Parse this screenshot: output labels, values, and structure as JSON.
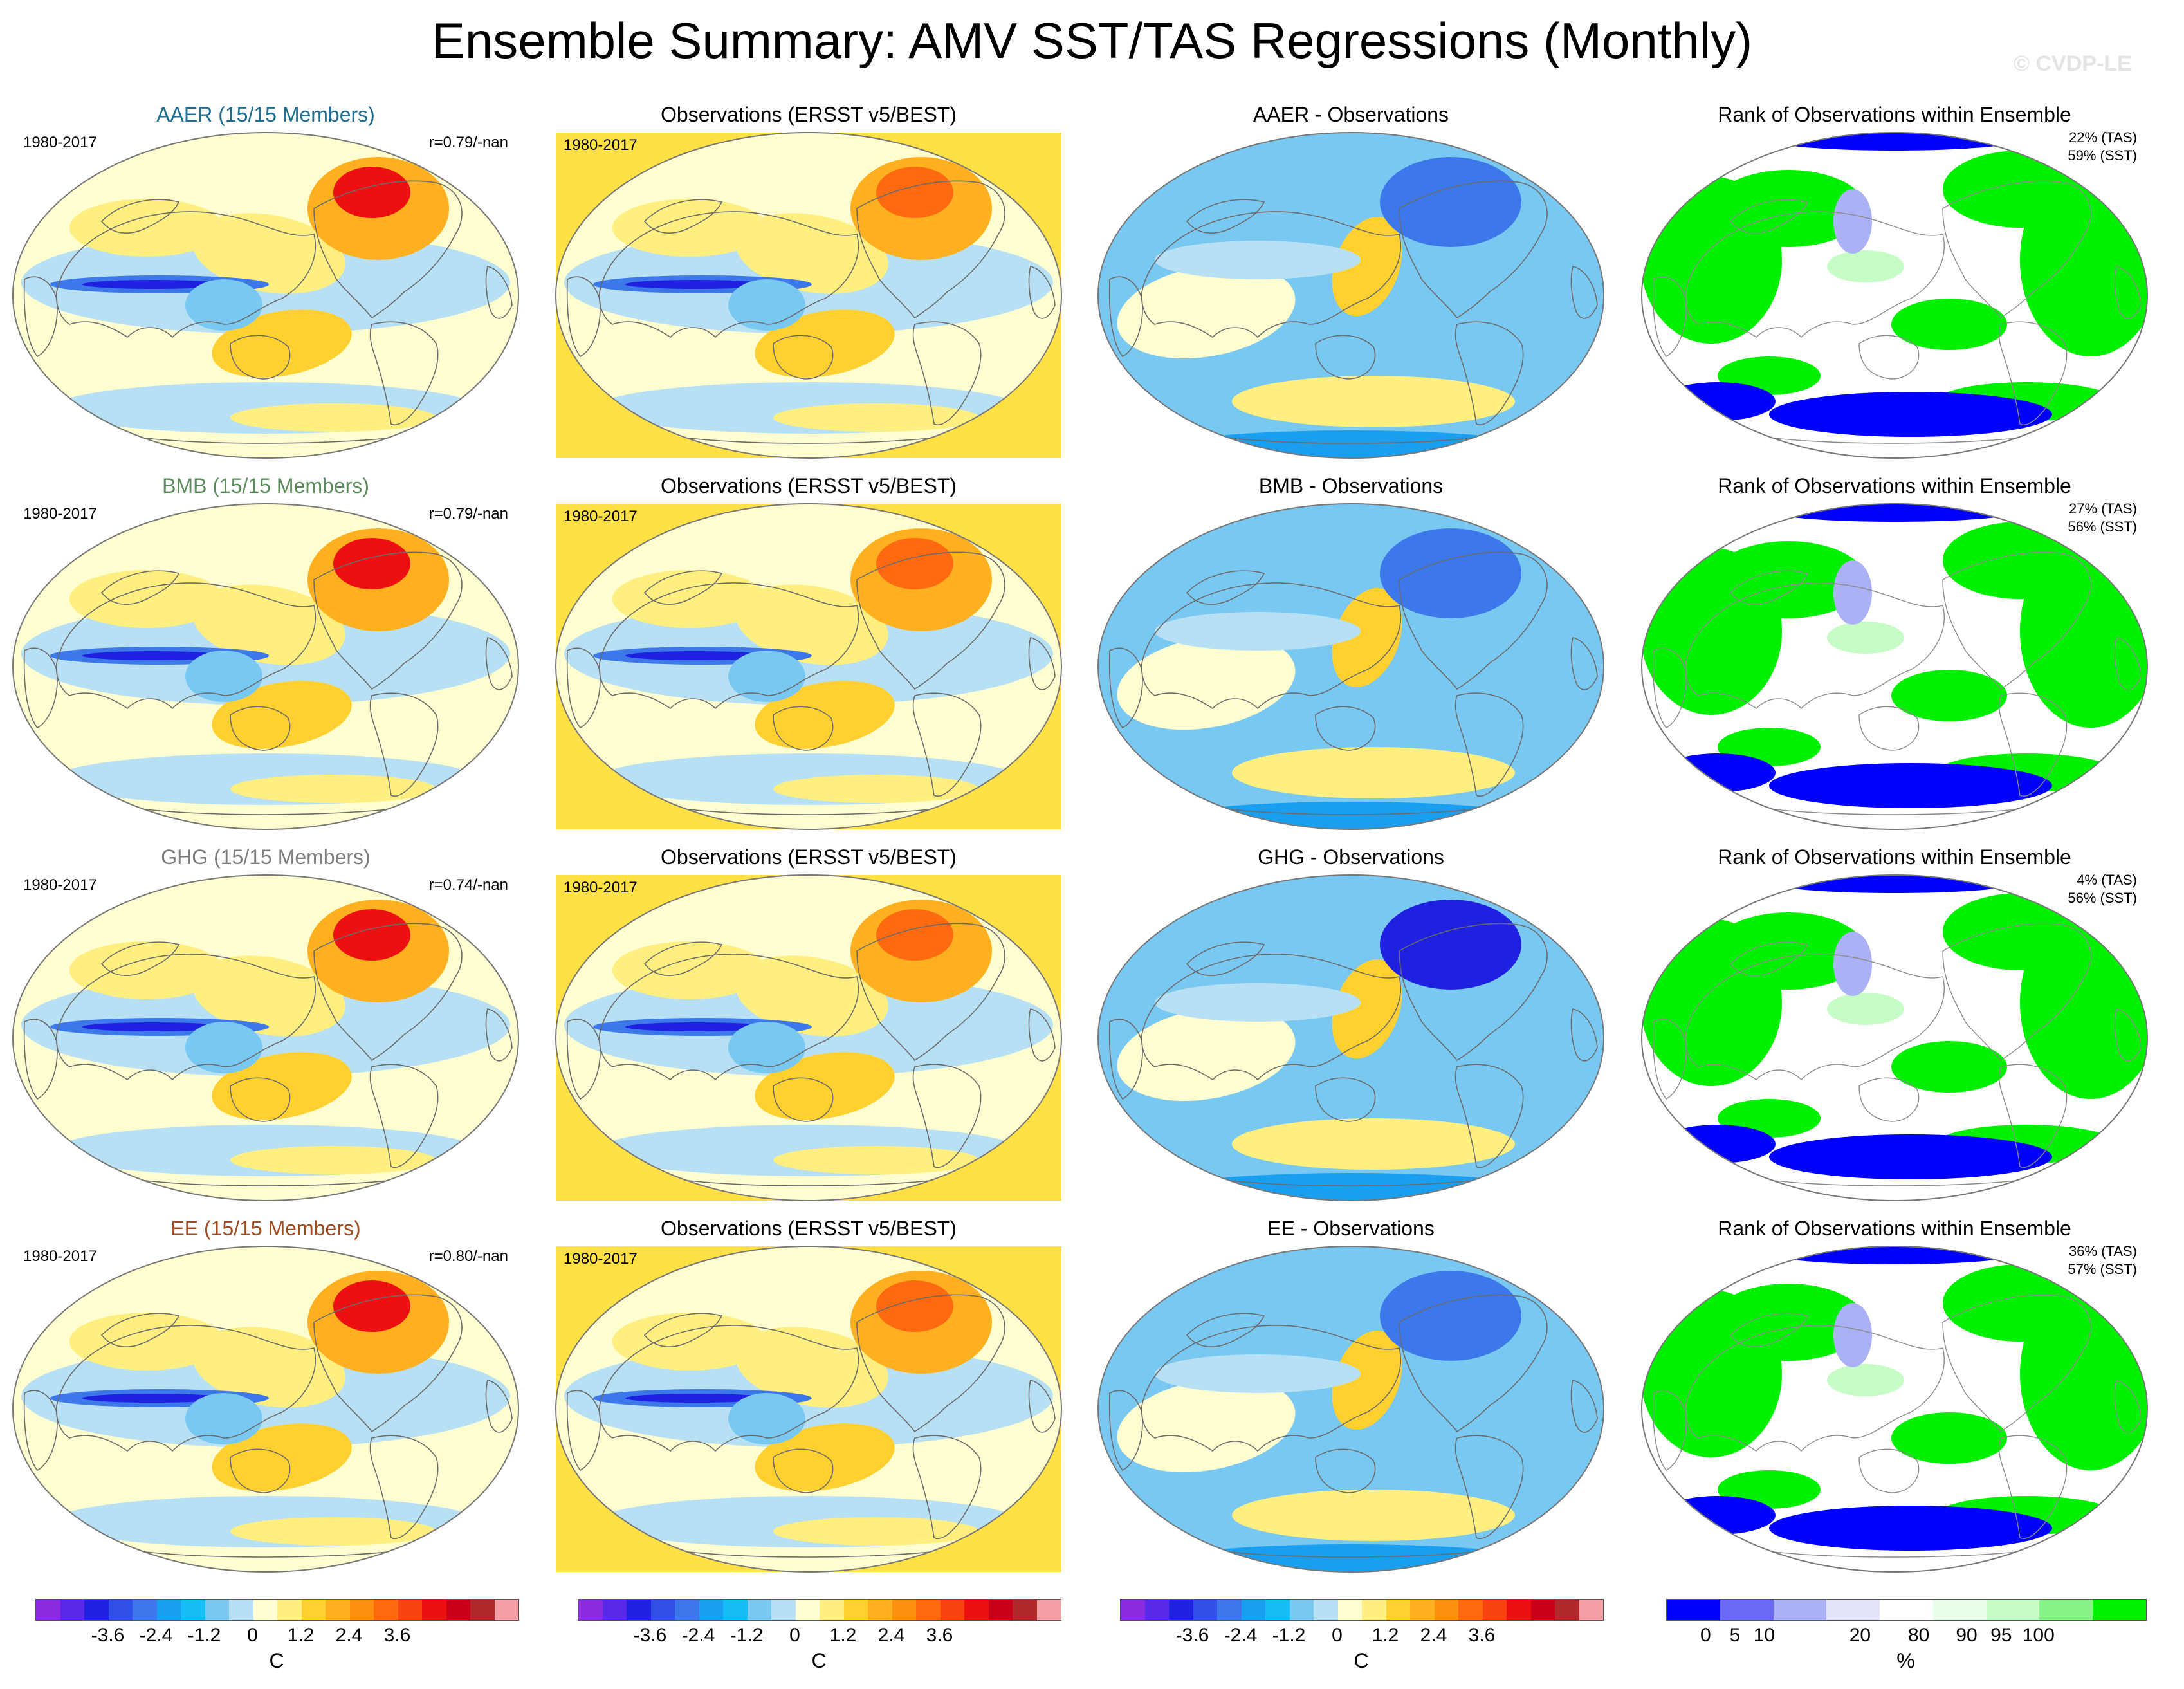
{
  "title": "Ensemble Summary: AMV SST/TAS Regressions (Monthly)",
  "watermark": "© CVDP-LE",
  "colors": {
    "aaer": "#1f6f95",
    "bmb": "#5b8a5b",
    "ghg": "#7d7d7d",
    "ee": "#a04a1e",
    "obs_background": "#ffe045"
  },
  "rows": [
    {
      "model": {
        "title": "AAER (15/15 Members)",
        "period": "1980-2017",
        "corr": "r=0.79/-nan"
      },
      "obs": {
        "title": "Observations (ERSST v5/BEST)",
        "period": "1980-2017"
      },
      "diff": {
        "title": "AAER - Observations"
      },
      "rank": {
        "title": "Rank of Observations within Ensemble",
        "tas": "22% (TAS)",
        "sst": "59% (SST)"
      }
    },
    {
      "model": {
        "title": "BMB (15/15 Members)",
        "period": "1980-2017",
        "corr": "r=0.79/-nan"
      },
      "obs": {
        "title": "Observations (ERSST v5/BEST)",
        "period": "1980-2017"
      },
      "diff": {
        "title": "BMB - Observations"
      },
      "rank": {
        "title": "Rank of Observations within Ensemble",
        "tas": "27% (TAS)",
        "sst": "56% (SST)"
      }
    },
    {
      "model": {
        "title": "GHG (15/15 Members)",
        "period": "1980-2017",
        "corr": "r=0.74/-nan"
      },
      "obs": {
        "title": "Observations (ERSST v5/BEST)",
        "period": "1980-2017"
      },
      "diff": {
        "title": "GHG - Observations"
      },
      "rank": {
        "title": "Rank of Observations within Ensemble",
        "tas": "4% (TAS)",
        "sst": "56% (SST)"
      }
    },
    {
      "model": {
        "title": "EE (15/15 Members)",
        "period": "1980-2017",
        "corr": "r=0.80/-nan"
      },
      "obs": {
        "title": "Observations (ERSST v5/BEST)",
        "period": "1980-2017"
      },
      "diff": {
        "title": "EE - Observations"
      },
      "rank": {
        "title": "Rank of Observations within Ensemble",
        "tas": "36% (TAS)",
        "sst": "57% (SST)"
      }
    }
  ],
  "colorbars": {
    "temp": {
      "unit": "C",
      "colors": [
        "#8a2be2",
        "#5a28e8",
        "#2020e0",
        "#3050e8",
        "#3d78ea",
        "#1a9ff0",
        "#16bdf7",
        "#79c8f2",
        "#b8e0f5",
        "#fefed0",
        "#ffee80",
        "#ffd030",
        "#ffb020",
        "#ff9010",
        "#ff6a10",
        "#f84410",
        "#ee1010",
        "#c80018",
        "#b0282a",
        "#f5a0a5"
      ],
      "ticks": [
        "-3.6",
        "-2.4",
        "-1.2",
        "0",
        "1.2",
        "2.4",
        "3.6"
      ]
    },
    "rank": {
      "unit": "%",
      "colors": [
        "#0000ff",
        "#6a6af5",
        "#aab2f5",
        "#e2e4fb",
        "#ffffff",
        "#e8fee8",
        "#c6fdc6",
        "#88f388",
        "#00f000"
      ],
      "ticks": [
        "0",
        "5",
        "10",
        "20",
        "80",
        "90",
        "95",
        "100"
      ]
    }
  }
}
